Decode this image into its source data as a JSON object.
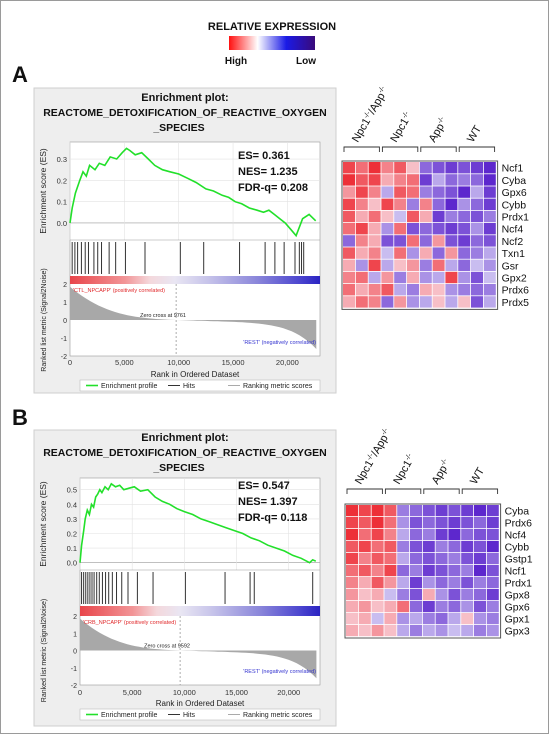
{
  "legend": {
    "title": "RELATIVE EXPRESSION",
    "high_label": "High",
    "low_label": "Low",
    "gradient_colors": [
      "#ff1010",
      "#ffffff",
      "#1a1ae6",
      "#3a0a7a"
    ]
  },
  "panels": [
    {
      "letter": "A",
      "plot_title_lines": [
        "Enrichment plot:",
        "REACTOME_DETOXIFICATION_OF_REACTIVE_OXYGEN",
        "_SPECIES"
      ],
      "stats": [
        "ES= 0.361",
        "NES= 1.235",
        "FDR-q= 0.208"
      ],
      "pos_label": "'CTL_NPCAPP' (positively correlated)",
      "neg_label": "'REST' (negatively correlated)",
      "zero_cross": "Zero cross at 9761",
      "legend_items": [
        "Enrichment profile",
        "Hits",
        "Ranking metric scores"
      ],
      "heatmap_cols": [
        {
          "base": "Npc1",
          "sup": "-/-",
          "tail": "/App",
          "tail_sup": "-/-"
        },
        {
          "base": "Npc1",
          "sup": "-/-",
          "tail": "",
          "tail_sup": ""
        },
        {
          "base": "App",
          "sup": "-/-",
          "tail": "",
          "tail_sup": ""
        },
        {
          "base": "WT",
          "sup": "",
          "tail": "",
          "tail_sup": ""
        }
      ],
      "genes": [
        "Ncf1",
        "Cyba",
        "Gpx6",
        "Cybb",
        "Prdx1",
        "Ncf4",
        "Ncf2",
        "Txn1",
        "Gsr",
        "Gpx2",
        "Prdx6",
        "Prdx5"
      ],
      "heatmap_values": [
        [
          0.8,
          0.6,
          0.9,
          0.5,
          0.7,
          0.2,
          -0.6,
          -0.7,
          -0.8,
          -0.7,
          -0.8,
          -0.9
        ],
        [
          0.9,
          0.7,
          0.8,
          0.3,
          0.5,
          0.6,
          -0.8,
          -0.3,
          -0.6,
          -0.5,
          -0.6,
          -0.9
        ],
        [
          0.4,
          0.8,
          0.5,
          -0.3,
          0.7,
          0.6,
          -0.5,
          -0.6,
          -0.7,
          -0.9,
          -0.3,
          -0.8
        ],
        [
          0.8,
          0.5,
          0.2,
          0.8,
          0.5,
          -0.5,
          0.5,
          -0.6,
          -0.9,
          -0.4,
          -0.6,
          -0.8
        ],
        [
          0.7,
          0.3,
          0.6,
          0.2,
          -0.2,
          0.7,
          0.3,
          -0.8,
          -0.5,
          -0.6,
          -0.7,
          -0.5
        ],
        [
          0.6,
          0.8,
          0.3,
          -0.4,
          0.6,
          -0.7,
          -0.6,
          -0.7,
          -0.8,
          -0.7,
          -0.4,
          -0.8
        ],
        [
          -0.6,
          0.5,
          0.3,
          -0.7,
          -0.7,
          0.6,
          -0.6,
          0.4,
          -0.7,
          -0.8,
          -0.6,
          -0.7
        ],
        [
          0.7,
          0.3,
          0.5,
          -0.2,
          0.6,
          -0.4,
          0.3,
          -0.6,
          0.4,
          -0.6,
          -0.5,
          -0.3
        ],
        [
          0.3,
          -0.4,
          0.8,
          -0.3,
          0.2,
          0.4,
          -0.5,
          0.6,
          -0.3,
          -0.6,
          -0.2,
          -0.4
        ],
        [
          0.5,
          0.6,
          -0.3,
          0.4,
          -0.5,
          0.3,
          -0.4,
          -0.3,
          0.8,
          -0.4,
          -0.7,
          -0.2
        ],
        [
          0.6,
          0.3,
          0.5,
          0.7,
          -0.3,
          -0.5,
          0.3,
          0.2,
          -0.4,
          -0.5,
          -0.6,
          -0.5
        ],
        [
          0.3,
          0.6,
          0.5,
          -0.6,
          0.4,
          -0.4,
          -0.3,
          0.2,
          -0.3,
          0.2,
          -0.7,
          -0.3
        ]
      ]
    },
    {
      "letter": "B",
      "plot_title_lines": [
        "Enrichment plot:",
        "REACTOME_DETOXIFICATION_OF_REACTIVE_OXYGEN",
        "_SPECIES"
      ],
      "stats": [
        "ES= 0.547",
        "NES= 1.397",
        "FDR-q= 0.118"
      ],
      "pos_label": "'CRB_NPCAPP' (positively correlated)",
      "neg_label": "'REST' (negatively correlated)",
      "zero_cross": "Zero cross at 9592",
      "legend_items": [
        "Enrichment profile",
        "Hits",
        "Ranking metric scores"
      ],
      "heatmap_cols": [
        {
          "base": "Npc1",
          "sup": "-/-",
          "tail": "/App",
          "tail_sup": "-/-"
        },
        {
          "base": "Npc1",
          "sup": "-/-",
          "tail": "",
          "tail_sup": ""
        },
        {
          "base": "App",
          "sup": "-/-",
          "tail": "",
          "tail_sup": ""
        },
        {
          "base": "WT",
          "sup": "",
          "tail": "",
          "tail_sup": ""
        }
      ],
      "genes": [
        "Cyba",
        "Prdx6",
        "Ncf4",
        "Cybb",
        "Gstp1",
        "Ncf1",
        "Prdx1",
        "Gpx8",
        "Gpx6",
        "Gpx1",
        "Gpx3"
      ],
      "heatmap_values": [
        [
          0.9,
          0.8,
          0.9,
          0.7,
          -0.5,
          -0.6,
          -0.7,
          -0.8,
          -0.7,
          -0.8,
          -0.9,
          -0.8
        ],
        [
          0.8,
          0.7,
          0.9,
          0.6,
          -0.4,
          -0.7,
          -0.6,
          -0.7,
          -0.8,
          -0.7,
          -0.6,
          -0.8
        ],
        [
          0.9,
          0.6,
          0.8,
          0.5,
          -0.3,
          -0.6,
          -0.5,
          -0.8,
          -0.9,
          -0.6,
          -0.7,
          -0.7
        ],
        [
          0.7,
          0.8,
          0.6,
          0.7,
          -0.5,
          -0.7,
          -0.8,
          -0.5,
          -0.6,
          -0.8,
          -0.7,
          -0.9
        ],
        [
          0.8,
          0.5,
          0.7,
          0.6,
          -0.3,
          -0.6,
          -0.7,
          -0.6,
          -0.5,
          -0.7,
          -0.8,
          -0.6
        ],
        [
          0.6,
          0.7,
          0.5,
          0.8,
          -0.6,
          -0.5,
          -0.8,
          -0.7,
          -0.6,
          -0.5,
          -0.9,
          -0.7
        ],
        [
          0.5,
          0.3,
          0.7,
          0.4,
          -0.3,
          -0.8,
          -0.4,
          -0.6,
          -0.5,
          -0.7,
          -0.5,
          -0.6
        ],
        [
          0.4,
          0.2,
          0.3,
          -0.2,
          -0.5,
          -0.7,
          0.3,
          -0.4,
          -0.7,
          -0.5,
          -0.6,
          -0.8
        ],
        [
          0.3,
          0.4,
          0.2,
          0.3,
          0.6,
          -0.6,
          -0.8,
          -0.5,
          -0.6,
          -0.4,
          -0.7,
          -0.5
        ],
        [
          0.2,
          0.3,
          -0.2,
          0.3,
          -0.4,
          -0.3,
          -0.5,
          -0.6,
          -0.3,
          0.2,
          -0.4,
          -0.5
        ],
        [
          0.3,
          0.2,
          0.4,
          0.2,
          -0.3,
          -0.5,
          -0.3,
          -0.4,
          -0.2,
          -0.3,
          -0.5,
          -0.4
        ]
      ]
    }
  ],
  "chart_data": [
    {
      "type": "line",
      "title": "Enrichment plot: REACTOME_DETOXIFICATION_OF_REACTIVE_OXYGEN_SPECIES",
      "xlabel": "Rank in Ordered Dataset",
      "ylabel": "Enrichment score (ES)",
      "ylabel2": "Ranked list metric (Signal2Noise)",
      "xlim": [
        0,
        23000
      ],
      "ylim": [
        -0.08,
        0.38
      ],
      "ylim2": [
        -2,
        2
      ],
      "x_ticks": [
        0,
        5000,
        10000,
        15000,
        20000
      ],
      "x_tick_labels": [
        "0",
        "5,000",
        "10,000",
        "15,000",
        "20,000"
      ],
      "y_ticks": [
        0.0,
        0.1,
        0.2,
        0.3
      ],
      "y_tick_labels": [
        "0.0",
        "0.1",
        "0.2",
        "0.3"
      ],
      "y2_ticks": [
        2,
        1,
        0,
        -1,
        -2
      ],
      "series": [
        {
          "name": "Enrichment profile",
          "x": [
            0,
            200,
            500,
            900,
            1200,
            1500,
            1800,
            2300,
            2700,
            3200,
            3700,
            4300,
            4800,
            5200,
            5500,
            6000,
            6600,
            7200,
            7800,
            8500,
            9200,
            10000,
            10800,
            11600,
            12500,
            13200,
            14000,
            14600,
            15200,
            15800,
            16500,
            17200,
            17800,
            18300,
            18800,
            19300,
            19800,
            20300,
            20800,
            21400,
            22000,
            22600
          ],
          "y": [
            0,
            0.07,
            0.14,
            0.2,
            0.24,
            0.22,
            0.27,
            0.25,
            0.28,
            0.27,
            0.31,
            0.3,
            0.33,
            0.35,
            0.34,
            0.32,
            0.33,
            0.3,
            0.27,
            0.25,
            0.24,
            0.23,
            0.21,
            0.19,
            0.16,
            0.15,
            0.13,
            0.12,
            0.1,
            0.09,
            0.07,
            0.06,
            0.05,
            0.06,
            0.04,
            0.02,
            0.0,
            -0.03,
            -0.06,
            0.02,
            0.04,
            0.01
          ]
        },
        {
          "name": "Hits",
          "x": [
            200,
            450,
            700,
            1050,
            1400,
            1700,
            2200,
            2550,
            2900,
            3600,
            4200,
            5100,
            6900,
            10150,
            12300,
            15600,
            17950,
            18850,
            19700,
            20700,
            21100,
            21300,
            21500
          ]
        }
      ]
    },
    {
      "type": "line",
      "title": "Enrichment plot: REACTOME_DETOXIFICATION_OF_REACTIVE_OXYGEN_SPECIES",
      "xlabel": "Rank in Ordered Dataset",
      "ylabel": "Enrichment score (ES)",
      "ylabel2": "Ranked list metric (Signal2Noise)",
      "xlim": [
        0,
        23000
      ],
      "ylim": [
        -0.05,
        0.58
      ],
      "ylim2": [
        -2,
        2
      ],
      "x_ticks": [
        0,
        5000,
        10000,
        15000,
        20000
      ],
      "x_tick_labels": [
        "0",
        "5,000",
        "10,000",
        "15,000",
        "20,000"
      ],
      "y_ticks": [
        0.0,
        0.1,
        0.2,
        0.3,
        0.4,
        0.5
      ],
      "y_tick_labels": [
        "0.0",
        "0.1",
        "0.2",
        "0.3",
        "0.4",
        "0.5"
      ],
      "y2_ticks": [
        2,
        1,
        0,
        -1,
        -2
      ],
      "series": [
        {
          "name": "Enrichment profile",
          "x": [
            0,
            150,
            350,
            500,
            700,
            900,
            1100,
            1300,
            1500,
            1700,
            1900,
            2100,
            2400,
            2700,
            3000,
            3400,
            3800,
            4200,
            4700,
            5200,
            5800,
            6500,
            7200,
            7900,
            8600,
            9300,
            10000,
            10800,
            11600,
            12400,
            13200,
            14000,
            14800,
            15600,
            16400,
            17200,
            18000,
            18800,
            19600,
            20400,
            21200,
            22000,
            22300,
            22600
          ],
          "y": [
            0,
            0.12,
            0.22,
            0.3,
            0.36,
            0.33,
            0.4,
            0.38,
            0.45,
            0.47,
            0.5,
            0.48,
            0.52,
            0.5,
            0.54,
            0.52,
            0.53,
            0.5,
            0.51,
            0.52,
            0.49,
            0.5,
            0.45,
            0.42,
            0.4,
            0.37,
            0.35,
            0.33,
            0.3,
            0.28,
            0.26,
            0.24,
            0.22,
            0.2,
            0.17,
            0.15,
            0.12,
            0.1,
            0.08,
            0.05,
            0.03,
            0.0,
            0.02,
            0.01
          ]
        },
        {
          "name": "Hits",
          "x": [
            150,
            350,
            550,
            750,
            950,
            1150,
            1350,
            1600,
            1850,
            2150,
            2450,
            2750,
            3100,
            3500,
            4000,
            4600,
            5500,
            7000,
            10100,
            13900,
            16300,
            16700,
            22300
          ]
        }
      ]
    }
  ]
}
